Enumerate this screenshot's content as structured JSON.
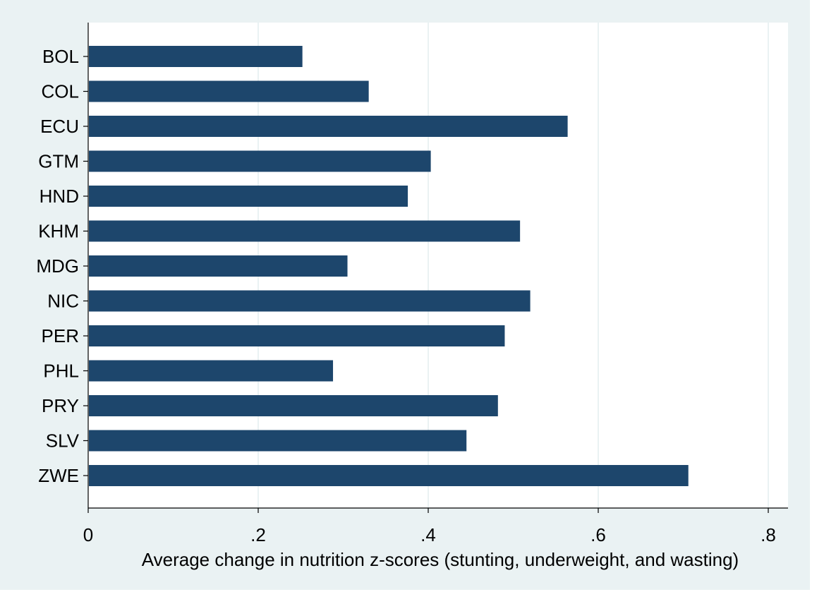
{
  "chart_data": {
    "type": "bar",
    "orientation": "horizontal",
    "categories": [
      "BOL",
      "COL",
      "ECU",
      "GTM",
      "HND",
      "KHM",
      "MDG",
      "NIC",
      "PER",
      "PHL",
      "PRY",
      "SLV",
      "ZWE"
    ],
    "values": [
      0.252,
      0.33,
      0.564,
      0.403,
      0.376,
      0.508,
      0.305,
      0.52,
      0.49,
      0.288,
      0.482,
      0.445,
      0.706
    ],
    "xlabel": "Average change in nutrition z-scores (stunting, underweight, and wasting)",
    "ylabel": "",
    "xlim": [
      0,
      0.8
    ],
    "xticks": [
      0,
      0.2,
      0.4,
      0.6,
      0.8
    ],
    "xtick_labels": [
      "0",
      ".2",
      ".4",
      ".6",
      ".8"
    ],
    "grid": "vertical",
    "colors": {
      "bar": "#1d466c",
      "background": "#eaf2f3",
      "plot_area": "#ffffff",
      "grid": "#eaf2f3",
      "axis": "#000000"
    }
  }
}
